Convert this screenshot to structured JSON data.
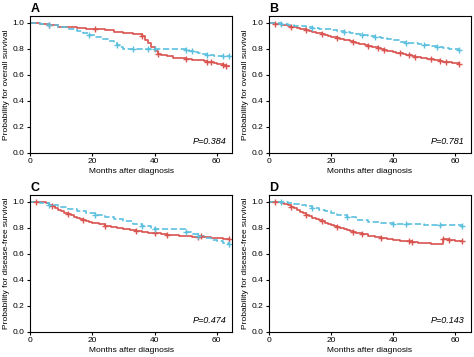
{
  "chart_data": [
    {
      "type": "line",
      "title": "A",
      "annotations": [
        "P=0.384"
      ],
      "x_label": "Months after diagnosis",
      "y_label": "Probability for overall survival",
      "xlim": [
        0,
        65
      ],
      "ylim": [
        0.0,
        1.05
      ],
      "xticks": [
        0,
        20,
        40,
        60
      ],
      "yticks": [
        0.0,
        0.2,
        0.4,
        0.6,
        0.8,
        1.0
      ],
      "series": [
        {
          "type": "step",
          "color": "#d9534f",
          "line_style": "solid",
          "x": [
            0,
            3,
            6,
            9,
            12,
            15,
            18,
            21,
            24,
            27,
            30,
            33,
            36,
            37,
            38,
            39,
            40,
            41,
            42,
            44,
            46,
            48,
            50,
            52,
            54,
            56,
            57,
            58,
            59,
            60,
            61,
            62,
            63,
            64
          ],
          "values": [
            1.0,
            0.99,
            0.98,
            0.97,
            0.965,
            0.96,
            0.955,
            0.95,
            0.94,
            0.93,
            0.92,
            0.91,
            0.9,
            0.87,
            0.84,
            0.81,
            0.78,
            0.76,
            0.75,
            0.74,
            0.73,
            0.725,
            0.72,
            0.715,
            0.71,
            0.705,
            0.7,
            0.695,
            0.69,
            0.685,
            0.68,
            0.675,
            0.67,
            0.67
          ]
        },
        {
          "type": "step",
          "color": "#5bc0de",
          "line_style": "dashed",
          "x": [
            0,
            3,
            6,
            9,
            12,
            15,
            17,
            19,
            21,
            23,
            25,
            27,
            28,
            29,
            30,
            31,
            32,
            33,
            34,
            35,
            36,
            37,
            38,
            39,
            40,
            50,
            51,
            52,
            53,
            54,
            55,
            56,
            57,
            58,
            59,
            60,
            61,
            62,
            63,
            64
          ],
          "values": [
            1.0,
            0.99,
            0.98,
            0.965,
            0.95,
            0.935,
            0.92,
            0.905,
            0.89,
            0.875,
            0.86,
            0.845,
            0.83,
            0.815,
            0.8,
            0.8,
            0.8,
            0.8,
            0.8,
            0.8,
            0.8,
            0.8,
            0.8,
            0.8,
            0.8,
            0.79,
            0.785,
            0.78,
            0.775,
            0.77,
            0.76,
            0.755,
            0.75,
            0.748,
            0.746,
            0.744,
            0.742,
            0.74,
            0.74,
            0.74
          ]
        },
        {
          "type": "scatter",
          "color": "#d9534f",
          "marker": "plus",
          "x": [
            57,
            62,
            6,
            21,
            36,
            41,
            50,
            58,
            63
          ],
          "values": [
            0.695,
            0.675,
            0.98,
            0.95,
            0.9,
            0.76,
            0.72,
            0.695,
            0.67
          ]
        },
        {
          "type": "scatter",
          "color": "#5bc0de",
          "marker": "plus",
          "x": [
            40,
            50,
            64,
            6,
            19,
            28,
            33,
            38,
            52,
            57,
            62
          ],
          "values": [
            0.8,
            0.79,
            0.74,
            0.98,
            0.905,
            0.83,
            0.8,
            0.8,
            0.78,
            0.75,
            0.74
          ]
        }
      ]
    },
    {
      "type": "line",
      "title": "B",
      "annotations": [
        "P=0.781"
      ],
      "x_label": "Months after diagnosis",
      "y_label": "Probability for overall survival",
      "xlim": [
        0,
        65
      ],
      "ylim": [
        0.0,
        1.05
      ],
      "xticks": [
        0,
        20,
        40,
        60
      ],
      "yticks": [
        0.0,
        0.2,
        0.4,
        0.6,
        0.8,
        1.0
      ],
      "series": [
        {
          "type": "step",
          "color": "#d9534f",
          "line_style": "solid",
          "x": [
            0,
            1,
            2,
            3,
            4,
            5,
            6,
            7,
            8,
            9,
            10,
            11,
            12,
            13,
            14,
            15,
            16,
            17,
            18,
            19,
            20,
            21,
            22,
            23,
            24,
            25,
            26,
            27,
            28,
            29,
            30,
            31,
            32,
            33,
            34,
            35,
            36,
            37,
            38,
            39,
            40,
            41,
            42,
            43,
            44,
            45,
            46,
            47,
            48,
            49,
            50,
            51,
            52,
            53,
            54,
            55,
            56,
            57,
            58,
            59,
            60,
            61
          ],
          "values": [
            1.0,
            0.996,
            0.992,
            0.988,
            0.984,
            0.979,
            0.974,
            0.969,
            0.964,
            0.959,
            0.954,
            0.948,
            0.942,
            0.936,
            0.93,
            0.924,
            0.918,
            0.912,
            0.906,
            0.9,
            0.893,
            0.887,
            0.881,
            0.875,
            0.869,
            0.863,
            0.857,
            0.851,
            0.845,
            0.839,
            0.833,
            0.827,
            0.821,
            0.815,
            0.809,
            0.803,
            0.797,
            0.791,
            0.785,
            0.779,
            0.774,
            0.769,
            0.764,
            0.759,
            0.754,
            0.749,
            0.744,
            0.739,
            0.734,
            0.729,
            0.725,
            0.721,
            0.717,
            0.713,
            0.709,
            0.705,
            0.701,
            0.697,
            0.694,
            0.691,
            0.688,
            0.685
          ]
        },
        {
          "type": "step",
          "color": "#5bc0de",
          "line_style": "dashed",
          "x": [
            0,
            2,
            4,
            6,
            8,
            10,
            12,
            14,
            16,
            18,
            20,
            22,
            24,
            26,
            28,
            30,
            32,
            34,
            36,
            38,
            40,
            42,
            44,
            46,
            48,
            50,
            52,
            54,
            56,
            58,
            60,
            61
          ],
          "values": [
            1.0,
            0.995,
            0.99,
            0.984,
            0.978,
            0.972,
            0.966,
            0.96,
            0.954,
            0.948,
            0.941,
            0.934,
            0.927,
            0.919,
            0.911,
            0.903,
            0.895,
            0.887,
            0.879,
            0.871,
            0.863,
            0.855,
            0.847,
            0.84,
            0.833,
            0.826,
            0.819,
            0.812,
            0.806,
            0.8,
            0.794,
            0.79
          ]
        },
        {
          "type": "scatter",
          "color": "#d9534f",
          "marker": "plus",
          "x": [
            35,
            45,
            55,
            61,
            2,
            7,
            12,
            17,
            22,
            27,
            32,
            37,
            42,
            47,
            52,
            57
          ],
          "values": [
            0.803,
            0.749,
            0.705,
            0.685,
            0.992,
            0.969,
            0.942,
            0.912,
            0.881,
            0.851,
            0.821,
            0.791,
            0.764,
            0.739,
            0.717,
            0.697
          ]
        },
        {
          "type": "scatter",
          "color": "#5bc0de",
          "marker": "plus",
          "x": [
            30,
            50,
            61,
            4,
            14,
            24,
            34,
            44,
            54
          ],
          "values": [
            0.903,
            0.826,
            0.79,
            0.99,
            0.96,
            0.927,
            0.887,
            0.847,
            0.812
          ]
        }
      ]
    },
    {
      "type": "line",
      "title": "C",
      "annotations": [
        "P=0.474"
      ],
      "x_label": "Months after diagnosis",
      "y_label": "Probability for disease-free survival",
      "xlim": [
        0,
        65
      ],
      "ylim": [
        0.0,
        1.05
      ],
      "xticks": [
        0,
        20,
        40,
        60
      ],
      "yticks": [
        0.0,
        0.2,
        0.4,
        0.6,
        0.8,
        1.0
      ],
      "series": [
        {
          "type": "step",
          "color": "#d9534f",
          "line_style": "solid",
          "x": [
            0,
            1,
            2,
            3,
            4,
            5,
            6,
            7,
            8,
            9,
            10,
            11,
            12,
            13,
            14,
            15,
            16,
            17,
            18,
            19,
            20,
            22,
            24,
            26,
            28,
            30,
            32,
            34,
            36,
            38,
            40,
            42,
            44,
            46,
            48,
            50,
            52,
            54,
            56,
            58,
            60,
            62,
            64
          ],
          "values": [
            1.0,
            1.0,
            1.0,
            1.0,
            0.995,
            0.988,
            0.978,
            0.965,
            0.952,
            0.939,
            0.927,
            0.916,
            0.905,
            0.895,
            0.886,
            0.877,
            0.869,
            0.861,
            0.853,
            0.846,
            0.84,
            0.827,
            0.815,
            0.804,
            0.795,
            0.787,
            0.779,
            0.773,
            0.767,
            0.761,
            0.756,
            0.751,
            0.747,
            0.743,
            0.739,
            0.735,
            0.732,
            0.729,
            0.726,
            0.723,
            0.72,
            0.715,
            0.71
          ]
        },
        {
          "type": "step",
          "color": "#5bc0de",
          "line_style": "dashed",
          "x": [
            0,
            3,
            6,
            9,
            12,
            15,
            18,
            21,
            24,
            27,
            30,
            33,
            36,
            39,
            40,
            50,
            52,
            54,
            56,
            58,
            60,
            62,
            64
          ],
          "values": [
            1.0,
            0.99,
            0.975,
            0.96,
            0.944,
            0.928,
            0.912,
            0.896,
            0.88,
            0.864,
            0.848,
            0.832,
            0.816,
            0.8,
            0.79,
            0.77,
            0.755,
            0.74,
            0.72,
            0.705,
            0.695,
            0.685,
            0.675
          ]
        },
        {
          "type": "scatter",
          "color": "#d9534f",
          "marker": "plus",
          "x": [
            40,
            55,
            64,
            2,
            7,
            12,
            17,
            24,
            34,
            44,
            54
          ],
          "values": [
            0.756,
            0.735,
            0.71,
            1.0,
            0.965,
            0.905,
            0.861,
            0.815,
            0.773,
            0.747,
            0.729
          ]
        },
        {
          "type": "scatter",
          "color": "#5bc0de",
          "marker": "plus",
          "x": [
            40,
            50,
            64,
            6,
            21,
            36,
            54
          ],
          "values": [
            0.79,
            0.77,
            0.675,
            0.975,
            0.896,
            0.816,
            0.74
          ]
        }
      ]
    },
    {
      "type": "line",
      "title": "D",
      "annotations": [
        "P=0.143"
      ],
      "x_label": "Months after diagnosis",
      "y_label": "Probability for disease-free survival",
      "xlim": [
        0,
        65
      ],
      "ylim": [
        0.0,
        1.05
      ],
      "xticks": [
        0,
        20,
        40,
        60
      ],
      "yticks": [
        0.0,
        0.2,
        0.4,
        0.6,
        0.8,
        1.0
      ],
      "series": [
        {
          "type": "step",
          "color": "#d9534f",
          "line_style": "solid",
          "x": [
            0,
            1,
            2,
            3,
            4,
            5,
            6,
            7,
            8,
            9,
            10,
            11,
            12,
            13,
            14,
            15,
            16,
            17,
            18,
            19,
            20,
            21,
            22,
            23,
            24,
            25,
            26,
            27,
            28,
            30,
            32,
            34,
            36,
            38,
            40,
            42,
            44,
            46,
            48,
            50,
            52,
            54,
            56,
            58,
            60,
            62
          ],
          "values": [
            1.0,
            1.0,
            0.998,
            0.995,
            0.99,
            0.982,
            0.972,
            0.96,
            0.948,
            0.936,
            0.924,
            0.912,
            0.9,
            0.889,
            0.878,
            0.868,
            0.858,
            0.848,
            0.839,
            0.83,
            0.821,
            0.813,
            0.805,
            0.797,
            0.789,
            0.782,
            0.775,
            0.768,
            0.762,
            0.75,
            0.74,
            0.731,
            0.723,
            0.715,
            0.708,
            0.701,
            0.695,
            0.69,
            0.685,
            0.68,
            0.677,
            0.674,
            0.71,
            0.705,
            0.7,
            0.695
          ]
        },
        {
          "type": "step",
          "color": "#5bc0de",
          "line_style": "dashed",
          "x": [
            0,
            2,
            4,
            6,
            8,
            10,
            12,
            14,
            16,
            18,
            20,
            22,
            25,
            28,
            32,
            36,
            40,
            44,
            50,
            55,
            60,
            62
          ],
          "values": [
            1.0,
            0.998,
            0.995,
            0.99,
            0.983,
            0.975,
            0.965,
            0.953,
            0.94,
            0.927,
            0.914,
            0.9,
            0.88,
            0.86,
            0.845,
            0.835,
            0.828,
            0.825,
            0.822,
            0.82,
            0.818,
            0.816
          ]
        },
        {
          "type": "scatter",
          "color": "#d9534f",
          "marker": "plus",
          "x": [
            30,
            45,
            58,
            62,
            2,
            7,
            12,
            17,
            22,
            27,
            36,
            46,
            56
          ],
          "values": [
            0.75,
            0.695,
            0.705,
            0.695,
            0.998,
            0.96,
            0.9,
            0.848,
            0.805,
            0.768,
            0.723,
            0.69,
            0.71
          ]
        },
        {
          "type": "scatter",
          "color": "#5bc0de",
          "marker": "plus",
          "x": [
            40,
            55,
            62,
            4,
            14,
            25,
            44
          ],
          "values": [
            0.828,
            0.82,
            0.816,
            0.995,
            0.953,
            0.88,
            0.825
          ]
        }
      ]
    }
  ]
}
